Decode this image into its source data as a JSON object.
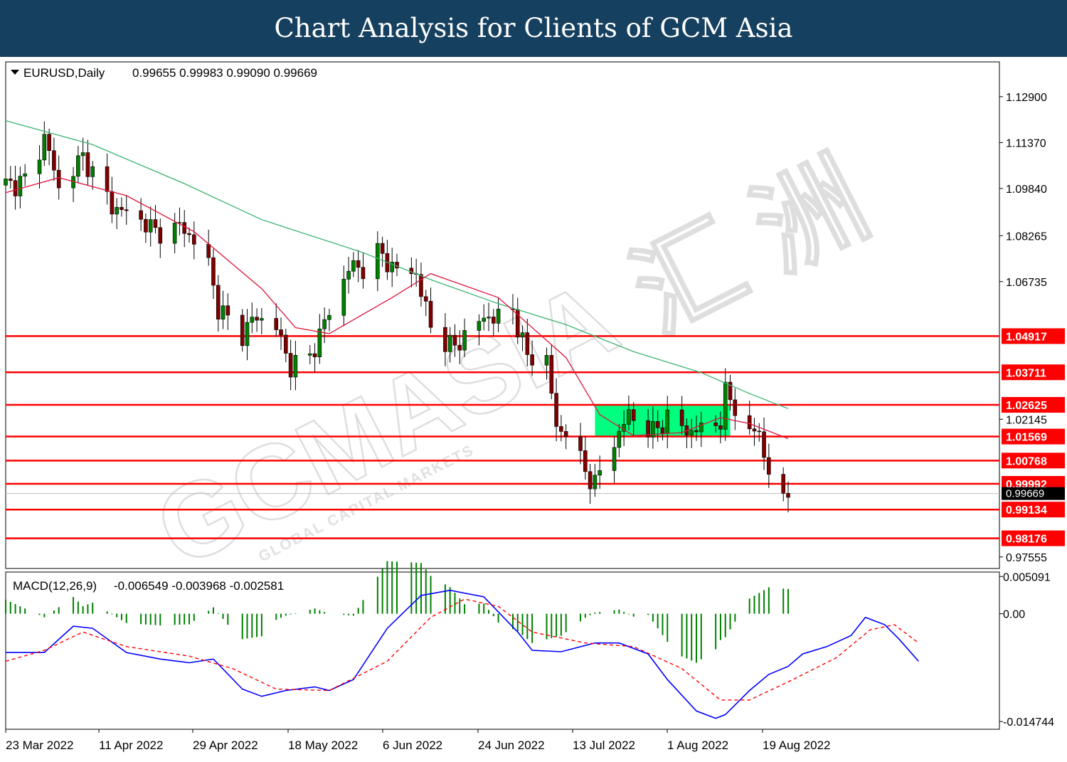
{
  "banner": {
    "title": "Chart Analysis for Clients of GCM Asia"
  },
  "price_header": {
    "symbol": "EURUSD,Daily",
    "ohlc": "0.99655 0.99983 0.99090 0.99669"
  },
  "macd_header": {
    "label": "MACD(12,26,9)",
    "values": "-0.006549 -0.003968 -0.002581"
  },
  "watermark": {
    "brand": "GCMASIA",
    "tagline": "GLOBAL CAPITAL MARKETS",
    "chinese": "汇 洲"
  },
  "colors": {
    "banner": "#16405f",
    "bull_candle": "#008000",
    "bear_candle": "#800000",
    "sma_fast": "#dc143c",
    "sma_slow": "#3cb371",
    "level_line": "#ff0000",
    "consolidation_zone": "#00ff7f",
    "macd_histogram": "#008000",
    "macd_line": "#0000ff",
    "signal_line": "#ff0000"
  },
  "chart_data": [
    {
      "type": "candlestick",
      "symbol": "EURUSD",
      "timeframe": "Daily",
      "ylim": [
        0.9717,
        1.1406
      ],
      "y_ticks": [
        "1.12900",
        "1.11370",
        "1.09840",
        "1.08265",
        "1.06735",
        "1.02145",
        "0.97555"
      ],
      "x_labels": [
        "23 Mar 2022",
        "11 Apr 2022",
        "29 Apr 2022",
        "18 May 2022",
        "6 Jun 2022",
        "24 Jun 2022",
        "13 Jul 2022",
        "1 Aug 2022",
        "19 Aug 2022"
      ],
      "current_price": 0.99669,
      "current_price_label": "0.99669",
      "levels": [
        {
          "value": 1.04917,
          "label": "1.04917"
        },
        {
          "value": 1.03711,
          "label": "1.03711"
        },
        {
          "value": 1.02625,
          "label": "1.02625"
        },
        {
          "value": 1.01569,
          "label": "1.01569"
        },
        {
          "value": 1.00768,
          "label": "1.00768"
        },
        {
          "value": 0.99992,
          "label": "0.99992"
        },
        {
          "value": 0.99134,
          "label": "0.99134"
        },
        {
          "value": 0.98176,
          "label": "0.98176"
        }
      ],
      "zone": {
        "from": "2022-07-14",
        "to": "2022-08-11",
        "low": 1.01569,
        "high": 1.02625
      },
      "series_keypoints": [
        [
          "2022-03-14",
          1.0995
        ],
        [
          "2022-03-16",
          1.1
        ],
        [
          "2022-03-18",
          1.101
        ],
        [
          "2022-03-21",
          1.111
        ],
        [
          "2022-03-22",
          1.116
        ],
        [
          "2022-03-25",
          1.0985
        ],
        [
          "2022-03-30",
          1.109
        ],
        [
          "2022-03-31",
          1.1065
        ],
        [
          "2022-04-05",
          1.0925
        ],
        [
          "2022-04-11",
          1.088
        ],
        [
          "2022-04-14",
          1.084
        ],
        [
          "2022-04-20",
          1.0855
        ],
        [
          "2022-04-22",
          1.08
        ],
        [
          "2022-04-25",
          1.074
        ],
        [
          "2022-04-27",
          1.058
        ],
        [
          "2022-05-02",
          1.05
        ],
        [
          "2022-05-05",
          1.056
        ],
        [
          "2022-05-09",
          1.052
        ],
        [
          "2022-05-12",
          1.039
        ],
        [
          "2022-05-16",
          1.042
        ],
        [
          "2022-05-18",
          1.05
        ],
        [
          "2022-05-20",
          1.057
        ],
        [
          "2022-05-24",
          1.072
        ],
        [
          "2022-05-27",
          1.072
        ],
        [
          "2022-05-30",
          1.077
        ],
        [
          "2022-06-03",
          1.071
        ],
        [
          "2022-06-07",
          1.07
        ],
        [
          "2022-06-10",
          1.052
        ],
        [
          "2022-06-15",
          1.045
        ],
        [
          "2022-06-17",
          1.05
        ],
        [
          "2022-06-22",
          1.056
        ],
        [
          "2022-06-24",
          1.055
        ],
        [
          "2022-06-27",
          1.058
        ],
        [
          "2022-06-30",
          1.042
        ],
        [
          "2022-07-04",
          1.042
        ],
        [
          "2022-07-06",
          1.018
        ],
        [
          "2022-07-08",
          1.018
        ],
        [
          "2022-07-12",
          1.004
        ],
        [
          "2022-07-14",
          1.0
        ],
        [
          "2022-07-18",
          1.014
        ],
        [
          "2022-07-21",
          1.023
        ],
        [
          "2022-07-26",
          1.017
        ],
        [
          "2022-07-29",
          1.022
        ],
        [
          "2022-08-02",
          1.0175
        ],
        [
          "2022-08-05",
          1.018
        ],
        [
          "2022-08-09",
          1.021
        ],
        [
          "2022-08-10",
          1.03
        ],
        [
          "2022-08-12",
          1.026
        ],
        [
          "2022-08-15",
          1.016
        ],
        [
          "2022-08-17",
          1.018
        ],
        [
          "2022-08-18",
          1.009
        ],
        [
          "2022-08-19",
          1.004
        ],
        [
          "2022-08-22",
          0.994
        ],
        [
          "2022-08-23",
          0.9965
        ]
      ],
      "sma_fast_keypoints": [
        [
          "2022-03-14",
          1.097
        ],
        [
          "2022-03-25",
          1.102
        ],
        [
          "2022-04-08",
          1.096
        ],
        [
          "2022-04-22",
          1.084
        ],
        [
          "2022-05-06",
          1.065
        ],
        [
          "2022-05-13",
          1.052
        ],
        [
          "2022-05-20",
          1.05
        ],
        [
          "2022-06-02",
          1.062
        ],
        [
          "2022-06-10",
          1.07
        ],
        [
          "2022-06-24",
          1.062
        ],
        [
          "2022-07-08",
          1.042
        ],
        [
          "2022-07-15",
          1.023
        ],
        [
          "2022-07-22",
          1.016
        ],
        [
          "2022-08-01",
          1.017
        ],
        [
          "2022-08-09",
          1.022
        ],
        [
          "2022-08-15",
          1.02
        ],
        [
          "2022-08-23",
          1.015
        ]
      ],
      "sma_slow_keypoints": [
        [
          "2022-03-14",
          1.121
        ],
        [
          "2022-04-01",
          1.113
        ],
        [
          "2022-04-20",
          1.1
        ],
        [
          "2022-05-06",
          1.088
        ],
        [
          "2022-05-27",
          1.077
        ],
        [
          "2022-06-10",
          1.068
        ],
        [
          "2022-06-24",
          1.06
        ],
        [
          "2022-07-08",
          1.053
        ],
        [
          "2022-07-22",
          1.044
        ],
        [
          "2022-08-05",
          1.037
        ],
        [
          "2022-08-15",
          1.03
        ],
        [
          "2022-08-23",
          1.025
        ]
      ]
    },
    {
      "type": "macd",
      "params": [
        12,
        26,
        9
      ],
      "values": {
        "macd": -0.006549,
        "signal": -0.003968,
        "histogram": -0.002581
      },
      "ylim": [
        -0.0158,
        0.0057
      ],
      "y_ticks": [
        "0.005091",
        "0.00",
        "-0.014744"
      ],
      "macd_keypoints": [
        [
          "2022-03-14",
          -0.0053
        ],
        [
          "2022-03-22",
          -0.0053
        ],
        [
          "2022-03-28",
          -0.0017
        ],
        [
          "2022-04-01",
          -0.002
        ],
        [
          "2022-04-08",
          -0.0053
        ],
        [
          "2022-04-15",
          -0.0062
        ],
        [
          "2022-04-21",
          -0.0067
        ],
        [
          "2022-04-26",
          -0.0062
        ],
        [
          "2022-05-02",
          -0.0103
        ],
        [
          "2022-05-06",
          -0.0113
        ],
        [
          "2022-05-11",
          -0.0105
        ],
        [
          "2022-05-17",
          -0.01
        ],
        [
          "2022-05-20",
          -0.0105
        ],
        [
          "2022-05-25",
          -0.009
        ],
        [
          "2022-06-01",
          -0.002
        ],
        [
          "2022-06-08",
          0.0025
        ],
        [
          "2022-06-14",
          0.0032
        ],
        [
          "2022-06-21",
          0.0023
        ],
        [
          "2022-06-28",
          -0.0025
        ],
        [
          "2022-07-01",
          -0.005
        ],
        [
          "2022-07-07",
          -0.0052
        ],
        [
          "2022-07-14",
          -0.004
        ],
        [
          "2022-07-19",
          -0.004
        ],
        [
          "2022-07-25",
          -0.0055
        ],
        [
          "2022-07-29",
          -0.009
        ],
        [
          "2022-08-04",
          -0.0133
        ],
        [
          "2022-08-08",
          -0.0143
        ],
        [
          "2022-08-10",
          -0.0138
        ],
        [
          "2022-08-15",
          -0.0105
        ],
        [
          "2022-08-19",
          -0.0083
        ],
        [
          "2022-08-23",
          -0.0072
        ],
        [
          "2022-08-26",
          -0.0055
        ],
        [
          "2022-08-31",
          -0.0045
        ],
        [
          "2022-09-05",
          -0.003
        ],
        [
          "2022-09-08",
          -0.0005
        ],
        [
          "2022-09-12",
          -0.0015
        ],
        [
          "2022-09-15",
          -0.0035
        ],
        [
          "2022-09-19",
          -0.0065
        ]
      ],
      "signal_keypoints": [
        [
          "2022-03-14",
          -0.0065
        ],
        [
          "2022-03-22",
          -0.005
        ],
        [
          "2022-03-30",
          -0.0025
        ],
        [
          "2022-04-08",
          -0.0045
        ],
        [
          "2022-04-21",
          -0.0058
        ],
        [
          "2022-04-30",
          -0.0075
        ],
        [
          "2022-05-09",
          -0.0103
        ],
        [
          "2022-05-20",
          -0.0105
        ],
        [
          "2022-06-01",
          -0.0065
        ],
        [
          "2022-06-10",
          -0.0005
        ],
        [
          "2022-06-17",
          0.002
        ],
        [
          "2022-06-24",
          0.001
        ],
        [
          "2022-07-01",
          -0.0025
        ],
        [
          "2022-07-12",
          -0.004
        ],
        [
          "2022-07-22",
          -0.0045
        ],
        [
          "2022-08-01",
          -0.0075
        ],
        [
          "2022-08-09",
          -0.0118
        ],
        [
          "2022-08-15",
          -0.0118
        ],
        [
          "2022-08-24",
          -0.009
        ],
        [
          "2022-09-02",
          -0.006
        ],
        [
          "2022-09-09",
          -0.0022
        ],
        [
          "2022-09-14",
          -0.0015
        ],
        [
          "2022-09-19",
          -0.004
        ]
      ]
    }
  ]
}
